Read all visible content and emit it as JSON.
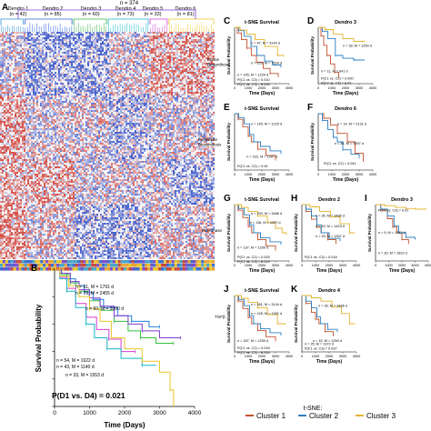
{
  "figure": {
    "colors": {
      "cluster1": "#c0522e",
      "cluster2": "#2f7fc1",
      "cluster3": "#e2b430",
      "heat_red": "#d2443a",
      "heat_blue": "#3a55c8",
      "dendro1": "#2b8fd6",
      "dendro2": "#2a5fe0",
      "dendro3": "#38b24a",
      "dendro4": "#18b4c8",
      "dendro5": "#cf3fcf",
      "dendro6": "#e8c62a",
      "dendro_extra": "#7e3fd1"
    }
  },
  "panel_a": {
    "letter": "A",
    "total_label": "n = 374",
    "dendro_groups": [
      {
        "name": "Dendro 1",
        "n": "(n = 42)"
      },
      {
        "name": "Dendro 2",
        "n": "(n = 85)"
      },
      {
        "name": "Dendro 3",
        "n": "(n = 60)"
      },
      {
        "name": "Dendro 4",
        "n": "(n = 73)"
      },
      {
        "name": "Dendro 5",
        "n": "(n = 33)"
      },
      {
        "name": "Dendro 6",
        "n": "(n = 81)"
      }
    ],
    "side_labels": [
      "Purine Biosynthesis",
      "Pyrimidine Biosynthesis",
      "PI3-Kinase",
      "TGFβ"
    ]
  },
  "panel_b": {
    "letter": "B",
    "annotations": [
      "n = 51, M = 1791 d",
      "n = 73, M = 2455 d",
      "n = 60, M = 3000 d",
      "n = 54, M = 1622 d",
      "n = 43, M = 1140 d",
      "n = 33, M = 1553 d"
    ],
    "pvalue": "P(D1 vs. D4) = 0.021"
  },
  "km_panels": [
    {
      "letter": "C",
      "title": "t-SNE Survival",
      "texts": [
        "n = 47, M = 3144 d",
        "n = 129, M = 1634 d",
        "n = 145, M = 1229 d",
        "P(C1 vs. C3) = 0.010",
        "P(C2 vs. C3) = 0.039"
      ]
    },
    {
      "letter": "D",
      "title": "Dendro 3",
      "texts": [
        "n = 33, M = 1250 d",
        "n = 11, M = 641 d",
        "P(C1 vs. C2) = 0.000",
        "P(C2 vs. C3) = 0.01"
      ]
    },
    {
      "letter": "E",
      "title": "t-SNE Survival",
      "texts": [
        "n = 145, M = 1229 d",
        "n = 222, M = 1397 d",
        "P(C1 vs. C2) = 0.04"
      ]
    },
    {
      "letter": "F",
      "title": "Dendro 6",
      "texts": [
        "n = 14, M = 2131 d",
        "n = 81, M = 1397 d",
        "P(C1 vs. C2) = 0.041"
      ]
    },
    {
      "letter": "G",
      "title": "t-SNE Survival",
      "texts": [
        "n = 190, M = 3486 d",
        "n = 116, M = 1397 d",
        "n = 137, M = 1250 d",
        "P(C1 vs. C2) = 0.025",
        "P(C2 vs. C3) = 0.019"
      ]
    },
    {
      "letter": "H",
      "title": "Dendro 2",
      "texts": [
        "n = 25, M = 3486 d",
        "n = 19, M = 1423 d",
        "n = 33, M = 1397 d",
        "P(C1 vs. C3) = 0.018"
      ]
    },
    {
      "letter": "I",
      "title": "Dendro 3",
      "texts": [
        "P(C1 vs. C3) = 0.01",
        "n = 9, M = 1762 d",
        "n = 30, M = 1622 d"
      ]
    },
    {
      "letter": "J",
      "title": "t-SNE Survival",
      "texts": [
        "n = 181, M = 3144 d",
        "n = 128, M = 1391 d",
        "n = 187, M = 1250 d",
        "P(C1 vs. C2) = 0.018",
        "P(C2 vs. C3) = 0.026"
      ]
    },
    {
      "letter": "K",
      "title": "Dendro 4",
      "texts": [
        "n = 33, M = 3486 d",
        "n = 15, M = 1250 d",
        "n = 25, M = 1372 d",
        "P(C1 vs. C3) = 0.037"
      ]
    }
  ],
  "side_row_labels": [
    "Purine Biosynthesis",
    "Pyrimidine Biosynthesis",
    "PI3-Kinase",
    "TGFβ"
  ],
  "legend": {
    "title": "t-SNE:",
    "items": [
      "Cluster 1",
      "Cluster 2",
      "Cluster 3"
    ]
  },
  "chart_data": [
    {
      "type": "heatmap",
      "title": "",
      "columns_total": 374,
      "column_groups": [
        "Dendro 1",
        "Dendro 2",
        "Dendro 3",
        "Dendro 4",
        "Dendro 5",
        "Dendro 6"
      ],
      "group_sizes": [
        42,
        85,
        60,
        73,
        33,
        81
      ],
      "row_labels": [
        "Purine Biosynthesis",
        "Pyrimidine Biosynthesis",
        "PI3-Kinase",
        "TGFβ"
      ],
      "palette": "blue-white-red"
    },
    {
      "type": "line",
      "title": "",
      "xlabel": "Time (Days)",
      "ylabel": "Survival Probability",
      "xlim": [
        0,
        4000
      ],
      "ylim": [
        0,
        1
      ],
      "xticks": [
        0,
        1000,
        2000,
        3000,
        4000
      ],
      "yticks": [
        0,
        0.2,
        0.4,
        0.6,
        0.8,
        1.0
      ],
      "series": [
        {
          "color": "#1f7fe0",
          "x": [
            0,
            150,
            350,
            600,
            850,
            1100,
            1400,
            1800,
            2200,
            2700,
            3000
          ],
          "y": [
            1.0,
            0.97,
            0.93,
            0.88,
            0.83,
            0.78,
            0.72,
            0.66,
            0.62,
            0.58,
            0.58
          ]
        },
        {
          "color": "#33bf3c",
          "x": [
            0,
            200,
            450,
            700,
            1000,
            1300,
            1700,
            2100,
            2455,
            2900,
            3400
          ],
          "y": [
            1.0,
            0.96,
            0.9,
            0.84,
            0.77,
            0.7,
            0.62,
            0.55,
            0.5,
            0.46,
            0.46
          ]
        },
        {
          "color": "#7d3fd1",
          "x": [
            0,
            200,
            450,
            700,
            1000,
            1300,
            1700,
            2100,
            2500,
            3000,
            3600
          ],
          "y": [
            1.0,
            0.97,
            0.91,
            0.85,
            0.79,
            0.73,
            0.66,
            0.6,
            0.55,
            0.5,
            0.5
          ]
        },
        {
          "color": "#d03bd0",
          "x": [
            0,
            150,
            350,
            600,
            900,
            1200,
            1553,
            1900,
            2300
          ],
          "y": [
            1.0,
            0.94,
            0.86,
            0.75,
            0.65,
            0.56,
            0.49,
            0.4,
            0.4
          ]
        },
        {
          "color": "#17b5c8",
          "x": [
            0,
            150,
            350,
            600,
            900,
            1140,
            1500,
            1900,
            2500,
            2900
          ],
          "y": [
            1.0,
            0.93,
            0.84,
            0.72,
            0.6,
            0.5,
            0.42,
            0.35,
            0.3,
            0.3
          ]
        },
        {
          "color": "#e8c62a",
          "x": [
            0,
            150,
            400,
            700,
            1000,
            1300,
            1622,
            2000,
            2500,
            3000,
            3300,
            3400
          ],
          "y": [
            1.0,
            0.95,
            0.88,
            0.8,
            0.71,
            0.62,
            0.5,
            0.42,
            0.33,
            0.25,
            0.12,
            0.0
          ]
        }
      ]
    },
    {
      "type": "line",
      "title": "t-SNE Survival",
      "xlabel": "Time (Days)",
      "ylabel": "Survival Probability",
      "xlim": [
        0,
        4000
      ],
      "ylim": [
        0,
        1
      ],
      "xticks": [
        0,
        1000,
        2000,
        3000,
        4000
      ],
      "series": [
        {
          "color": "#c0522e",
          "x": [
            0,
            200,
            500,
            900,
            1229,
            1600,
            2100,
            2600,
            3200
          ],
          "y": [
            1.0,
            0.9,
            0.78,
            0.63,
            0.5,
            0.38,
            0.27,
            0.18,
            0.12
          ]
        },
        {
          "color": "#2f7fc1",
          "x": [
            0,
            300,
            700,
            1200,
            1634,
            2200,
            2800,
            3400
          ],
          "y": [
            1.0,
            0.94,
            0.84,
            0.66,
            0.5,
            0.4,
            0.33,
            0.3
          ]
        },
        {
          "color": "#e2b430",
          "x": [
            0,
            400,
            900,
            1500,
            2200,
            3144,
            3600
          ],
          "y": [
            1.0,
            0.95,
            0.88,
            0.78,
            0.66,
            0.5,
            0.48
          ]
        }
      ]
    },
    {
      "type": "line",
      "title": "Dendro 3",
      "xlabel": "Time (Days)",
      "ylabel": "Survival Probability",
      "xlim": [
        0,
        4000
      ],
      "ylim": [
        0,
        1
      ],
      "xticks": [
        0,
        1000,
        2000,
        3000,
        4000
      ],
      "series": [
        {
          "color": "#c0522e",
          "x": [
            0,
            200,
            400,
            641,
            900,
            1200,
            1500
          ],
          "y": [
            1.0,
            0.85,
            0.68,
            0.5,
            0.35,
            0.2,
            0.1
          ]
        },
        {
          "color": "#2f7fc1",
          "x": [
            0,
            300,
            700,
            1250,
            1800,
            2600,
            3400
          ],
          "y": [
            1.0,
            0.93,
            0.8,
            0.5,
            0.45,
            0.42,
            0.42
          ]
        },
        {
          "color": "#e2b430",
          "x": [
            0,
            500,
            1100,
            1800,
            2600,
            3400
          ],
          "y": [
            1.0,
            0.96,
            0.88,
            0.8,
            0.75,
            0.75
          ]
        }
      ]
    },
    {
      "type": "line",
      "title": "t-SNE Survival",
      "xlabel": "Time (Days)",
      "ylabel": "Survival Probability",
      "xlim": [
        0,
        4000
      ],
      "ylim": [
        0,
        1
      ],
      "xticks": [
        0,
        1000,
        2000,
        3000,
        4000
      ],
      "series": [
        {
          "color": "#c0522e",
          "x": [
            0,
            250,
            600,
            1000,
            1229,
            1700,
            2300,
            3000
          ],
          "y": [
            1.0,
            0.9,
            0.77,
            0.6,
            0.5,
            0.37,
            0.26,
            0.18
          ]
        },
        {
          "color": "#2f7fc1",
          "x": [
            0,
            300,
            700,
            1100,
            1397,
            1900,
            2600,
            3400
          ],
          "y": [
            1.0,
            0.93,
            0.82,
            0.63,
            0.5,
            0.42,
            0.34,
            0.3
          ]
        }
      ]
    },
    {
      "type": "line",
      "title": "Dendro 6",
      "xlabel": "Time (Days)",
      "ylabel": "Survival Probability",
      "xlim": [
        0,
        4000
      ],
      "ylim": [
        0,
        1
      ],
      "xticks": [
        0,
        1000,
        2000,
        3000,
        4000
      ],
      "series": [
        {
          "color": "#c0522e",
          "x": [
            0,
            400,
            900,
            1400,
            2131,
            2700,
            3300
          ],
          "y": [
            1.0,
            0.92,
            0.8,
            0.65,
            0.5,
            0.3,
            0.15
          ]
        },
        {
          "color": "#2f7fc1",
          "x": [
            0,
            300,
            700,
            1100,
            1397,
            1800,
            2400,
            3000
          ],
          "y": [
            1.0,
            0.88,
            0.72,
            0.58,
            0.5,
            0.36,
            0.28,
            0.22
          ]
        }
      ]
    },
    {
      "type": "line",
      "title": "t-SNE Survival",
      "xlabel": "Time (Days)",
      "ylabel": "Survival Probability",
      "xlim": [
        0,
        4000
      ],
      "ylim": [
        0,
        1
      ],
      "xticks": [
        0,
        1000,
        2000,
        3000,
        4000
      ],
      "series": [
        {
          "color": "#c0522e",
          "x": [
            0,
            250,
            600,
            1000,
            1250,
            1700,
            2300,
            3000
          ],
          "y": [
            1.0,
            0.9,
            0.77,
            0.61,
            0.5,
            0.38,
            0.27,
            0.2
          ]
        },
        {
          "color": "#2f7fc1",
          "x": [
            0,
            300,
            700,
            1100,
            1397,
            1900,
            2600,
            3400
          ],
          "y": [
            1.0,
            0.93,
            0.82,
            0.64,
            0.5,
            0.41,
            0.34,
            0.3
          ]
        },
        {
          "color": "#e2b430",
          "x": [
            0,
            500,
            1000,
            1700,
            2400,
            3000,
            3486,
            3800
          ],
          "y": [
            1.0,
            0.95,
            0.88,
            0.8,
            0.68,
            0.58,
            0.5,
            0.48
          ]
        }
      ]
    },
    {
      "type": "line",
      "title": "Dendro 2",
      "xlabel": "Time (Days)",
      "ylabel": "Survival Probability",
      "xlim": [
        0,
        4000
      ],
      "ylim": [
        0,
        1
      ],
      "xticks": [
        0,
        1000,
        2000,
        3000,
        4000
      ],
      "series": [
        {
          "color": "#c0522e",
          "x": [
            0,
            300,
            700,
            1100,
            1397,
            1900,
            2500
          ],
          "y": [
            1.0,
            0.88,
            0.74,
            0.6,
            0.5,
            0.38,
            0.3
          ]
        },
        {
          "color": "#2f7fc1",
          "x": [
            0,
            300,
            700,
            1100,
            1423,
            2000,
            2800
          ],
          "y": [
            1.0,
            0.92,
            0.8,
            0.64,
            0.5,
            0.4,
            0.35
          ]
        },
        {
          "color": "#e2b430",
          "x": [
            0,
            600,
            1300,
            2100,
            2800,
            3486,
            3900
          ],
          "y": [
            1.0,
            0.96,
            0.88,
            0.78,
            0.66,
            0.5,
            0.5
          ]
        }
      ]
    },
    {
      "type": "line",
      "title": "Dendro 3",
      "xlabel": "Time (Days)",
      "ylabel": "Survival Probability",
      "xlim": [
        0,
        4000
      ],
      "ylim": [
        0,
        1
      ],
      "xticks": [
        0,
        1000,
        2000,
        3000,
        4000
      ],
      "series": [
        {
          "color": "#c0522e",
          "x": [
            0,
            400,
            900,
            1300,
            1622,
            2000,
            2500
          ],
          "y": [
            1.0,
            0.9,
            0.75,
            0.6,
            0.5,
            0.38,
            0.3
          ]
        },
        {
          "color": "#2f7fc1",
          "x": [
            0,
            400,
            900,
            1400,
            1762,
            2300,
            3000
          ],
          "y": [
            1.0,
            0.92,
            0.8,
            0.62,
            0.5,
            0.42,
            0.38
          ]
        },
        {
          "color": "#e2b430",
          "x": [
            0,
            700,
            1500,
            2300,
            3000,
            3800
          ],
          "y": [
            1.0,
            0.98,
            0.95,
            0.93,
            0.92,
            0.92
          ]
        }
      ]
    },
    {
      "type": "line",
      "title": "t-SNE Survival",
      "xlabel": "Time (Days)",
      "ylabel": "Survival Probability",
      "xlim": [
        0,
        4000
      ],
      "ylim": [
        0,
        1
      ],
      "xticks": [
        0,
        1000,
        2000,
        3000,
        4000
      ],
      "series": [
        {
          "color": "#c0522e",
          "x": [
            0,
            250,
            600,
            1000,
            1250,
            1700,
            2300,
            3000
          ],
          "y": [
            1.0,
            0.9,
            0.77,
            0.61,
            0.5,
            0.38,
            0.27,
            0.2
          ]
        },
        {
          "color": "#2f7fc1",
          "x": [
            0,
            300,
            700,
            1100,
            1391,
            1900,
            2600,
            3400
          ],
          "y": [
            1.0,
            0.93,
            0.82,
            0.64,
            0.5,
            0.41,
            0.34,
            0.3
          ]
        },
        {
          "color": "#e2b430",
          "x": [
            0,
            500,
            1000,
            1700,
            2400,
            3144,
            3700
          ],
          "y": [
            1.0,
            0.95,
            0.88,
            0.78,
            0.66,
            0.5,
            0.48
          ]
        }
      ]
    },
    {
      "type": "line",
      "title": "Dendro 4",
      "xlabel": "Time (Days)",
      "ylabel": "Survival Probability",
      "xlim": [
        0,
        4000
      ],
      "ylim": [
        0,
        1
      ],
      "xticks": [
        0,
        1000,
        2000,
        3000,
        4000
      ],
      "series": [
        {
          "color": "#c0522e",
          "x": [
            0,
            300,
            700,
            1000,
            1250,
            1700,
            2300
          ],
          "y": [
            1.0,
            0.86,
            0.7,
            0.58,
            0.5,
            0.36,
            0.28
          ]
        },
        {
          "color": "#2f7fc1",
          "x": [
            0,
            300,
            700,
            1100,
            1372,
            1900,
            2600
          ],
          "y": [
            1.0,
            0.9,
            0.78,
            0.62,
            0.5,
            0.4,
            0.35
          ]
        },
        {
          "color": "#e2b430",
          "x": [
            0,
            700,
            1400,
            2200,
            2900,
            3486,
            3900
          ],
          "y": [
            1.0,
            0.96,
            0.9,
            0.8,
            0.68,
            0.5,
            0.5
          ]
        }
      ]
    }
  ]
}
